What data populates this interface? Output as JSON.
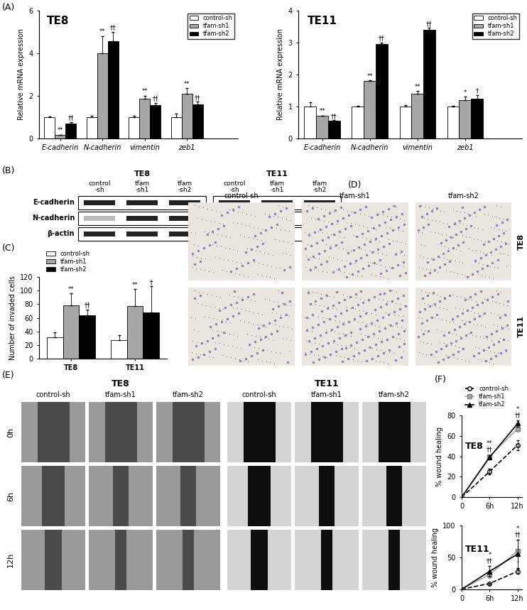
{
  "chart_data": [
    {
      "panel_label": "(A)",
      "type": "bar",
      "title": "TE8",
      "y_label": "Relative mRNA expression",
      "categories": [
        "E-cadherin",
        "N-cadherin",
        "vimentin",
        "zeb1"
      ],
      "ylim": [
        0,
        6
      ],
      "yticks": [
        0,
        2,
        4,
        6
      ],
      "legend": "upper right",
      "series": [
        {
          "name": "control-sh",
          "color": "#ffffff",
          "values": [
            1,
            1,
            1,
            1
          ],
          "errors": [
            0.04,
            0.08,
            0.05,
            0.15
          ]
        },
        {
          "name": "tfam-sh1",
          "color": "#a6a6a6",
          "values": [
            0.15,
            4.0,
            1.85,
            2.1
          ],
          "errors": [
            0.03,
            0.8,
            0.15,
            0.25
          ],
          "significance": [
            "**",
            "**",
            "**",
            "**"
          ]
        },
        {
          "name": "tfam-sh2",
          "color": "#000000",
          "values": [
            0.7,
            4.55,
            1.55,
            1.6
          ],
          "errors": [
            0.08,
            0.45,
            0.12,
            0.12
          ],
          "significance": [
            "††",
            "††",
            "††",
            "††"
          ]
        }
      ]
    },
    {
      "type": "bar",
      "title": "TE11",
      "y_label": "Relative mRNA expression",
      "categories": [
        "E-cadherin",
        "N-cadherin",
        "vimentin",
        "zeb1"
      ],
      "ylim": [
        0,
        4
      ],
      "yticks": [
        0,
        1,
        2,
        3,
        4
      ],
      "legend": "upper right",
      "series": [
        {
          "name": "control-sh",
          "color": "#ffffff",
          "values": [
            1,
            1,
            1,
            1
          ],
          "errors": [
            0.12,
            0.02,
            0.05,
            0.03
          ]
        },
        {
          "name": "tfam-sh1",
          "color": "#a6a6a6",
          "values": [
            0.7,
            1.8,
            1.4,
            1.2
          ],
          "errors": [
            0.02,
            0.02,
            0.08,
            0.1
          ],
          "significance": [
            "**",
            "**",
            "**",
            "*"
          ]
        },
        {
          "name": "tfam-sh2",
          "color": "#000000",
          "values": [
            0.55,
            2.95,
            3.4,
            1.25
          ],
          "errors": [
            0.02,
            0.05,
            0.05,
            0.1
          ],
          "significance": [
            "††",
            "††",
            "††",
            "†"
          ]
        }
      ]
    },
    {
      "panel_label": "(C)",
      "type": "bar",
      "y_label": "Number of invaded cells",
      "categories": [
        "TE8",
        "TE11"
      ],
      "ylim": [
        0,
        120
      ],
      "yticks": [
        0,
        20,
        40,
        60,
        80,
        100,
        120
      ],
      "legend": "upper left",
      "series": [
        {
          "name": "control-sh",
          "color": "#ffffff",
          "values": [
            31,
            27
          ],
          "errors": [
            8,
            7
          ]
        },
        {
          "name": "tfam-sh1",
          "color": "#a6a6a6",
          "values": [
            78,
            77
          ],
          "errors": [
            18,
            25
          ],
          "significance": [
            "**",
            "**"
          ]
        },
        {
          "name": "tfam-sh2",
          "color": "#000000",
          "values": [
            64,
            68
          ],
          "errors": [
            8,
            38
          ],
          "significance": [
            "††",
            "†"
          ]
        }
      ]
    },
    {
      "panel_label": "(F)",
      "type": "line",
      "title": "TE8",
      "y_label": "% wound healing",
      "x": [
        0,
        6,
        12
      ],
      "xlim": [
        0,
        13
      ],
      "xticks": [
        0,
        {
          "value": 6,
          "label": "6h"
        },
        {
          "value": 12,
          "label": "12h"
        }
      ],
      "ylim": [
        0,
        80
      ],
      "yticks": [
        0,
        20,
        40,
        60,
        80
      ],
      "legend": "upper left",
      "series": [
        {
          "name": "control-sh",
          "color": "#ffffff",
          "marker": "circle",
          "line_style": "dashed",
          "values": [
            0,
            25,
            51
          ],
          "errors": [
            0,
            3,
            5
          ]
        },
        {
          "name": "tfam-sh1",
          "color": "#a6a6a6",
          "marker": "square",
          "line_style": "solid",
          "values": [
            0,
            40,
            67
          ],
          "errors": [
            0,
            2,
            3
          ]
        },
        {
          "name": "tfam-sh2",
          "color": "#000000",
          "marker": "triangle",
          "line_style": "solid",
          "values": [
            0,
            39,
            72
          ],
          "errors": [
            0,
            2,
            3
          ]
        }
      ],
      "annotations": [
        {
          "x": 6,
          "texts": [
            "**",
            "††"
          ]
        },
        {
          "x": 12,
          "texts": [
            "*",
            "††"
          ]
        }
      ]
    },
    {
      "type": "line",
      "title": "TE11",
      "y_label": "% wound healing",
      "x": [
        0,
        6,
        12
      ],
      "xlim": [
        0,
        13
      ],
      "xticks": [
        0,
        {
          "value": 6,
          "label": "6h"
        },
        {
          "value": 12,
          "label": "12h"
        }
      ],
      "ylim": [
        0,
        100
      ],
      "yticks": [
        0,
        50,
        100
      ],
      "series": [
        {
          "name": "control-sh",
          "color": "#ffffff",
          "marker": "circle",
          "line_style": "dashed",
          "values": [
            0,
            9,
            28
          ],
          "errors": [
            0,
            1,
            4
          ]
        },
        {
          "name": "tfam-sh1",
          "color": "#a6a6a6",
          "marker": "square",
          "line_style": "solid",
          "values": [
            0,
            23,
            60
          ],
          "errors": [
            0,
            6,
            17
          ]
        },
        {
          "name": "tfam-sh2",
          "color": "#000000",
          "marker": "triangle",
          "line_style": "solid",
          "values": [
            0,
            28,
            55
          ],
          "errors": [
            0,
            8,
            22
          ]
        }
      ],
      "annotations": [
        {
          "x": 6,
          "texts": [
            "*",
            "††"
          ]
        },
        {
          "x": 12,
          "texts": [
            "*",
            "††"
          ]
        }
      ]
    }
  ],
  "western_blot": {
    "panel_label": "(B)",
    "groups": [
      {
        "name": "TE8",
        "lanes": [
          "control\n-sh",
          "tfam\n-sh1",
          "tfam\n-sh2"
        ]
      },
      {
        "name": "TE11",
        "lanes": [
          "control\n-sh",
          "tfam\n-sh1",
          "tfam\n-sh2"
        ]
      }
    ],
    "rows": [
      "E-cadherin",
      "N-cadherin",
      "β-actin"
    ]
  },
  "invasion_images": {
    "panel_label": "(D)",
    "columns": [
      "control-sh",
      "tfam-sh1",
      "tfam-sh2"
    ],
    "rows": [
      "TE8",
      "TE11"
    ]
  },
  "wound_images": {
    "panel_label": "(E)",
    "groups": [
      "TE8",
      "TE11"
    ],
    "columns": [
      "control-sh",
      "tfam-sh1",
      "tfam-sh2"
    ],
    "rows": [
      "0h",
      "6h",
      "12h"
    ]
  }
}
